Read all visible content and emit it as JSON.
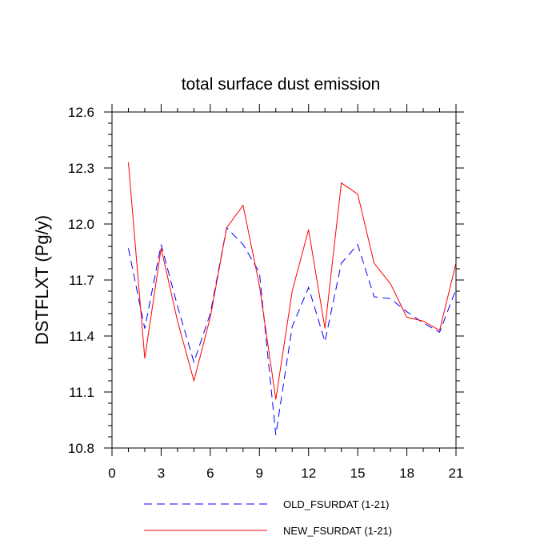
{
  "chart_data": {
    "type": "line",
    "title": "total surface dust emission",
    "xlabel": "",
    "ylabel": "DSTFLXT  (Pg/y)",
    "xlim": [
      0,
      21
    ],
    "ylim": [
      10.8,
      12.6
    ],
    "xticks": [
      0,
      3,
      6,
      9,
      12,
      15,
      18,
      21
    ],
    "xtick_labels": [
      "0",
      "3",
      "6",
      "9",
      "12",
      "15",
      "18",
      "21"
    ],
    "yticks": [
      10.8,
      11.1,
      11.4,
      11.7,
      12.0,
      12.3,
      12.6
    ],
    "ytick_labels": [
      "10.8",
      "11.1",
      "11.4",
      "11.7",
      "12.0",
      "12.3",
      "12.6"
    ],
    "x": [
      1,
      2,
      3,
      4,
      5,
      6,
      7,
      8,
      9,
      10,
      11,
      12,
      13,
      14,
      15,
      16,
      17,
      18,
      19,
      20,
      21
    ],
    "series": [
      {
        "name": "OLD_FSURDAT (1-21)",
        "color": "#0000ff",
        "dash": "dashed",
        "values": [
          11.87,
          11.44,
          11.89,
          11.56,
          11.26,
          11.52,
          11.98,
          11.89,
          11.74,
          10.87,
          11.45,
          11.66,
          11.37,
          11.79,
          11.89,
          11.61,
          11.6,
          11.53,
          11.47,
          11.42,
          11.65
        ]
      },
      {
        "name": "NEW_FSURDAT (1-21)",
        "color": "#ff0000",
        "dash": "solid",
        "values": [
          12.33,
          11.28,
          11.87,
          11.48,
          11.16,
          11.5,
          11.98,
          12.1,
          11.67,
          11.06,
          11.64,
          11.97,
          11.44,
          12.22,
          12.16,
          11.79,
          11.68,
          11.5,
          11.48,
          11.43,
          11.79
        ]
      }
    ],
    "grid": false,
    "legend": "bottom"
  }
}
